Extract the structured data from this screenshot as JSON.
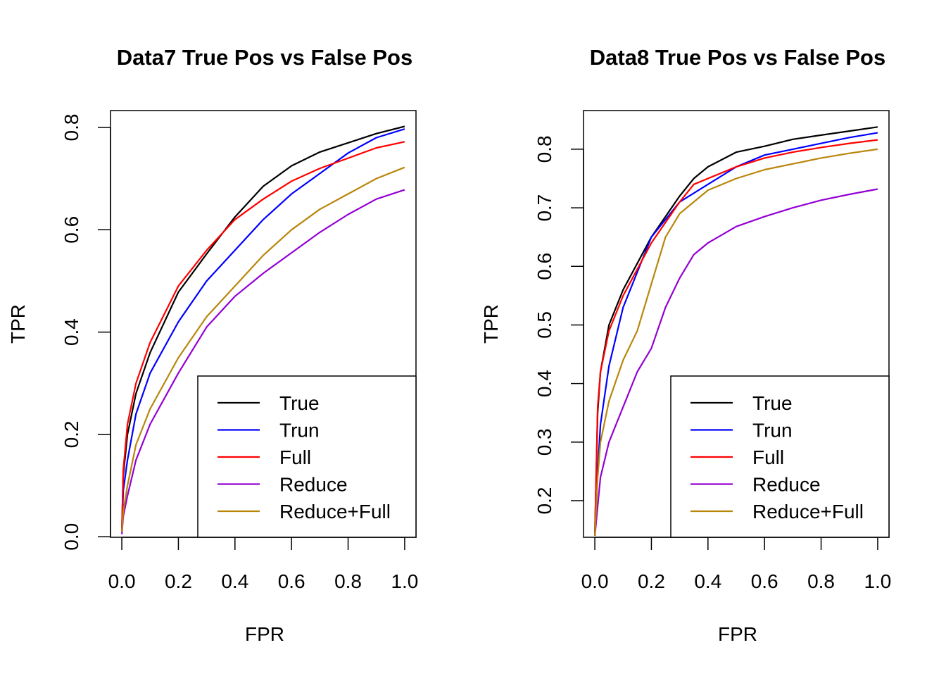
{
  "chart_data": [
    {
      "type": "line",
      "title": "Data7 True Pos vs False Pos",
      "xlabel": "FPR",
      "ylabel": "TPR",
      "xlim": [
        -0.04,
        1.04
      ],
      "ylim": [
        -0.001,
        0.833
      ],
      "xticks": [
        0,
        0.2,
        0.4,
        0.6,
        0.8,
        1.0
      ],
      "xtick_labels": [
        "0.0",
        "0.2",
        "0.4",
        "0.6",
        "0.8",
        "1.0"
      ],
      "yticks": [
        0,
        0.2,
        0.4,
        0.6,
        0.8
      ],
      "ytick_labels": [
        "0.0",
        "0.2",
        "0.4",
        "0.6",
        "0.8"
      ],
      "grid": false,
      "legend_position": "bottom-right",
      "series": [
        {
          "name": "True",
          "color": "#000000",
          "x": [
            0,
            0.005,
            0.02,
            0.05,
            0.1,
            0.2,
            0.3,
            0.4,
            0.5,
            0.6,
            0.7,
            0.8,
            0.9,
            1.0
          ],
          "y": [
            0.01,
            0.12,
            0.2,
            0.28,
            0.36,
            0.478,
            0.553,
            0.625,
            0.685,
            0.725,
            0.752,
            0.77,
            0.788,
            0.802
          ]
        },
        {
          "name": "Trun",
          "color": "#0000FF",
          "x": [
            0,
            0.005,
            0.02,
            0.05,
            0.1,
            0.2,
            0.3,
            0.4,
            0.5,
            0.6,
            0.7,
            0.8,
            0.9,
            1.0
          ],
          "y": [
            0.01,
            0.09,
            0.15,
            0.24,
            0.32,
            0.42,
            0.5,
            0.56,
            0.62,
            0.67,
            0.71,
            0.75,
            0.78,
            0.797
          ]
        },
        {
          "name": "Full",
          "color": "#FF0000",
          "x": [
            0,
            0.005,
            0.02,
            0.05,
            0.1,
            0.2,
            0.3,
            0.4,
            0.5,
            0.6,
            0.7,
            0.8,
            0.9,
            1.0
          ],
          "y": [
            0.01,
            0.13,
            0.22,
            0.3,
            0.38,
            0.49,
            0.56,
            0.62,
            0.66,
            0.695,
            0.72,
            0.74,
            0.76,
            0.772
          ]
        },
        {
          "name": "Reduce",
          "color": "#9400D3",
          "x": [
            0,
            0.005,
            0.02,
            0.05,
            0.1,
            0.2,
            0.3,
            0.4,
            0.5,
            0.6,
            0.7,
            0.8,
            0.9,
            1.0
          ],
          "y": [
            0.005,
            0.04,
            0.08,
            0.15,
            0.22,
            0.32,
            0.41,
            0.47,
            0.515,
            0.555,
            0.595,
            0.63,
            0.66,
            0.678
          ]
        },
        {
          "name": "Reduce+Full",
          "color": "#B8860B",
          "x": [
            0,
            0.005,
            0.02,
            0.05,
            0.1,
            0.2,
            0.3,
            0.4,
            0.5,
            0.6,
            0.7,
            0.8,
            0.9,
            1.0
          ],
          "y": [
            0.01,
            0.05,
            0.1,
            0.18,
            0.25,
            0.35,
            0.43,
            0.49,
            0.55,
            0.6,
            0.64,
            0.67,
            0.7,
            0.722
          ]
        }
      ]
    },
    {
      "type": "line",
      "title": "Data8 True Pos vs False Pos",
      "xlabel": "FPR",
      "ylabel": "TPR",
      "xlim": [
        -0.04,
        1.04
      ],
      "ylim": [
        0.1375,
        0.866
      ],
      "xticks": [
        0,
        0.2,
        0.4,
        0.6,
        0.8,
        1.0
      ],
      "xtick_labels": [
        "0.0",
        "0.2",
        "0.4",
        "0.6",
        "0.8",
        "1.0"
      ],
      "yticks": [
        0.2,
        0.3,
        0.4,
        0.5,
        0.6,
        0.7,
        0.8
      ],
      "ytick_labels": [
        "0.2",
        "0.3",
        "0.4",
        "0.5",
        "0.6",
        "0.7",
        "0.8"
      ],
      "grid": false,
      "legend_position": "bottom-right",
      "series": [
        {
          "name": "True",
          "color": "#000000",
          "x": [
            0,
            0.01,
            0.02,
            0.05,
            0.1,
            0.2,
            0.3,
            0.35,
            0.4,
            0.5,
            0.6,
            0.7,
            0.8,
            0.9,
            1.0
          ],
          "y": [
            0.14,
            0.35,
            0.42,
            0.5,
            0.56,
            0.65,
            0.72,
            0.75,
            0.77,
            0.795,
            0.805,
            0.817,
            0.824,
            0.831,
            0.838
          ]
        },
        {
          "name": "Trun",
          "color": "#0000FF",
          "x": [
            0,
            0.01,
            0.02,
            0.05,
            0.1,
            0.2,
            0.3,
            0.4,
            0.5,
            0.6,
            0.7,
            0.8,
            0.9,
            1.0
          ],
          "y": [
            0.14,
            0.25,
            0.33,
            0.43,
            0.53,
            0.65,
            0.71,
            0.74,
            0.77,
            0.79,
            0.8,
            0.81,
            0.82,
            0.828
          ]
        },
        {
          "name": "Full",
          "color": "#FF0000",
          "x": [
            0,
            0.01,
            0.02,
            0.05,
            0.1,
            0.2,
            0.3,
            0.35,
            0.4,
            0.5,
            0.6,
            0.7,
            0.8,
            0.9,
            1.0
          ],
          "y": [
            0.14,
            0.36,
            0.42,
            0.49,
            0.55,
            0.64,
            0.71,
            0.74,
            0.75,
            0.77,
            0.785,
            0.795,
            0.803,
            0.81,
            0.816
          ]
        },
        {
          "name": "Reduce",
          "color": "#9400D3",
          "x": [
            0,
            0.01,
            0.02,
            0.05,
            0.1,
            0.15,
            0.2,
            0.25,
            0.3,
            0.35,
            0.4,
            0.5,
            0.6,
            0.7,
            0.8,
            0.9,
            1.0
          ],
          "y": [
            0.14,
            0.19,
            0.24,
            0.3,
            0.36,
            0.42,
            0.46,
            0.53,
            0.58,
            0.62,
            0.64,
            0.668,
            0.685,
            0.7,
            0.713,
            0.723,
            0.732
          ]
        },
        {
          "name": "Reduce+Full",
          "color": "#B8860B",
          "x": [
            0,
            0.01,
            0.02,
            0.05,
            0.1,
            0.15,
            0.2,
            0.25,
            0.3,
            0.4,
            0.5,
            0.6,
            0.7,
            0.8,
            0.9,
            1.0
          ],
          "y": [
            0.14,
            0.24,
            0.3,
            0.37,
            0.44,
            0.49,
            0.57,
            0.65,
            0.69,
            0.73,
            0.75,
            0.765,
            0.775,
            0.785,
            0.793,
            0.8
          ]
        }
      ]
    }
  ]
}
